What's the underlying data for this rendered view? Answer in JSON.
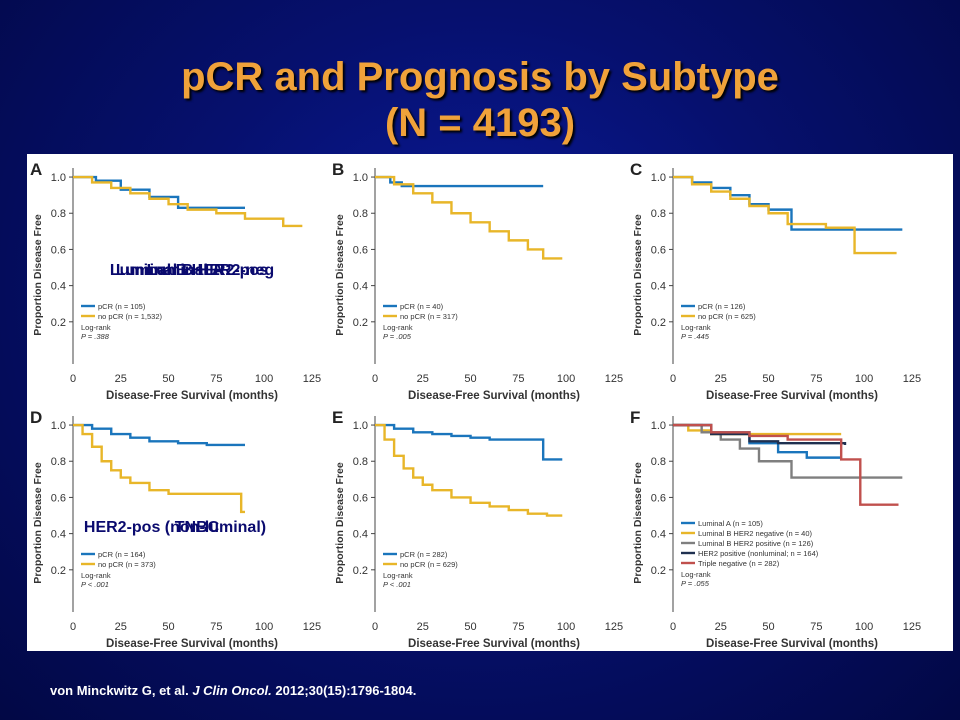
{
  "slide": {
    "title_line1": "pCR and Prognosis by Subtype",
    "title_line2": "(N = 4193)",
    "citation_authors": "von Minckwitz G, et al. ",
    "citation_journal": "J Clin Oncol.",
    "citation_details": " 2012;30(15):1796-1804."
  },
  "colors": {
    "background": "#06106e",
    "title": "#f0a23a",
    "pcr_blue": "#1a75bc",
    "nopcr_gold": "#e8b629",
    "luminal_a": "#1a75bc",
    "luminal_b_her2_neg": "#e8b629",
    "luminal_b_her2_pos": "#7f7f7f",
    "her2_nonluminal": "#1f3050",
    "triple_negative": "#c0504d"
  },
  "chart_data": [
    {
      "panel": "A",
      "type": "line",
      "step": true,
      "label": "Luminal A",
      "xlabel": "Disease-Free Survival (months)",
      "ylabel": "Proportion Disease Free",
      "xticks": [
        0,
        25,
        50,
        75,
        100,
        125
      ],
      "yticks": [
        0.2,
        0.4,
        0.6,
        0.8,
        1.0
      ],
      "xlim": [
        0,
        135
      ],
      "ylim": [
        0,
        1.05
      ],
      "series": [
        {
          "name": "pCR (n = 105)",
          "color": "#1a75bc",
          "x": [
            0,
            12,
            25,
            40,
            55,
            70,
            90
          ],
          "y": [
            1.0,
            0.98,
            0.93,
            0.89,
            0.83,
            0.83,
            0.83
          ]
        },
        {
          "name": "no pCR (n = 1,532)",
          "color": "#e8b629",
          "x": [
            0,
            10,
            20,
            30,
            40,
            50,
            60,
            75,
            90,
            110,
            120
          ],
          "y": [
            1.0,
            0.97,
            0.94,
            0.91,
            0.88,
            0.85,
            0.82,
            0.8,
            0.77,
            0.73,
            0.73
          ]
        }
      ],
      "legend": [
        "pCR (n = 105)",
        "no pCR (n = 1,532)"
      ],
      "stat": [
        "Log-rank",
        "P = .388"
      ]
    },
    {
      "panel": "B",
      "type": "line",
      "step": true,
      "label": "Luminal B HER2-neg",
      "xlabel": "Disease-Free Survival (months)",
      "ylabel": "Proportion Disease Free",
      "xticks": [
        0,
        25,
        50,
        75,
        100,
        125
      ],
      "yticks": [
        0.2,
        0.4,
        0.6,
        0.8,
        1.0
      ],
      "xlim": [
        0,
        135
      ],
      "ylim": [
        0,
        1.05
      ],
      "series": [
        {
          "name": "pCR (n = 40)",
          "color": "#1a75bc",
          "x": [
            0,
            8,
            14,
            30,
            88
          ],
          "y": [
            1.0,
            0.97,
            0.95,
            0.95,
            0.95
          ]
        },
        {
          "name": "no pCR (n = 317)",
          "color": "#e8b629",
          "x": [
            0,
            10,
            20,
            30,
            40,
            50,
            60,
            70,
            80,
            88,
            98
          ],
          "y": [
            1.0,
            0.96,
            0.91,
            0.86,
            0.8,
            0.75,
            0.7,
            0.65,
            0.6,
            0.55,
            0.55
          ]
        }
      ],
      "legend": [
        "pCR (n = 40)",
        "no pCR (n = 317)"
      ],
      "stat": [
        "Log-rank",
        "P = .005"
      ]
    },
    {
      "panel": "C",
      "type": "line",
      "step": true,
      "label": "Luminal B HER2-pos",
      "xlabel": "Disease-Free Survival (months)",
      "ylabel": "Proportion Disease Free",
      "xticks": [
        0,
        25,
        50,
        75,
        100,
        125
      ],
      "yticks": [
        0.2,
        0.4,
        0.6,
        0.8,
        1.0
      ],
      "xlim": [
        0,
        135
      ],
      "ylim": [
        0,
        1.05
      ],
      "series": [
        {
          "name": "pCR (n = 126)",
          "color": "#1a75bc",
          "x": [
            0,
            10,
            20,
            30,
            40,
            50,
            62,
            80,
            100,
            120
          ],
          "y": [
            1.0,
            0.97,
            0.94,
            0.9,
            0.85,
            0.82,
            0.71,
            0.71,
            0.71,
            0.71
          ]
        },
        {
          "name": "no pCR (n = 625)",
          "color": "#e8b629",
          "x": [
            0,
            10,
            20,
            30,
            40,
            50,
            60,
            80,
            95,
            117
          ],
          "y": [
            1.0,
            0.96,
            0.92,
            0.88,
            0.84,
            0.8,
            0.74,
            0.72,
            0.58,
            0.58
          ]
        }
      ],
      "legend": [
        "pCR (n = 126)",
        "no pCR (n = 625)"
      ],
      "stat": [
        "Log-rank",
        "P = .445"
      ]
    },
    {
      "panel": "D",
      "type": "line",
      "step": true,
      "label": "HER2-pos (non-luminal)",
      "xlabel": "Disease-Free Survival (months)",
      "ylabel": "Proportion Disease Free",
      "xticks": [
        0,
        25,
        50,
        75,
        100,
        125
      ],
      "yticks": [
        0.2,
        0.4,
        0.6,
        0.8,
        1.0
      ],
      "xlim": [
        0,
        135
      ],
      "ylim": [
        0,
        1.05
      ],
      "series": [
        {
          "name": "pCR (n = 164)",
          "color": "#1a75bc",
          "x": [
            0,
            10,
            20,
            30,
            40,
            55,
            70,
            90
          ],
          "y": [
            1.0,
            0.98,
            0.95,
            0.93,
            0.91,
            0.9,
            0.89,
            0.89
          ]
        },
        {
          "name": "no pCR (n = 373)",
          "color": "#e8b629",
          "x": [
            0,
            5,
            10,
            15,
            20,
            25,
            30,
            40,
            50,
            60,
            70,
            85,
            88,
            90
          ],
          "y": [
            1.0,
            0.95,
            0.88,
            0.8,
            0.75,
            0.71,
            0.68,
            0.64,
            0.62,
            0.62,
            0.62,
            0.62,
            0.52,
            0.52
          ]
        }
      ],
      "legend": [
        "pCR (n = 164)",
        "no pCR (n = 373)"
      ],
      "stat": [
        "Log-rank",
        "P < .001"
      ]
    },
    {
      "panel": "E",
      "type": "line",
      "step": true,
      "label": "TNBC",
      "xlabel": "Disease-Free Survival (months)",
      "ylabel": "Proportion Disease Free",
      "xticks": [
        0,
        25,
        50,
        75,
        100,
        125
      ],
      "yticks": [
        0.2,
        0.4,
        0.6,
        0.8,
        1.0
      ],
      "xlim": [
        0,
        135
      ],
      "ylim": [
        0,
        1.05
      ],
      "series": [
        {
          "name": "pCR (n = 282)",
          "color": "#1a75bc",
          "x": [
            0,
            10,
            20,
            30,
            40,
            50,
            60,
            70,
            88,
            98
          ],
          "y": [
            1.0,
            0.98,
            0.96,
            0.95,
            0.94,
            0.93,
            0.92,
            0.92,
            0.81,
            0.81
          ]
        },
        {
          "name": "no pCR (n = 629)",
          "color": "#e8b629",
          "x": [
            0,
            5,
            10,
            15,
            20,
            25,
            30,
            40,
            50,
            60,
            70,
            80,
            90,
            98
          ],
          "y": [
            1.0,
            0.92,
            0.83,
            0.76,
            0.71,
            0.67,
            0.64,
            0.6,
            0.57,
            0.55,
            0.53,
            0.51,
            0.5,
            0.5
          ]
        }
      ],
      "legend": [
        "pCR (n = 282)",
        "no pCR (n = 629)"
      ],
      "stat": [
        "Log-rank",
        "P < .001"
      ]
    },
    {
      "panel": "F",
      "type": "line",
      "step": true,
      "label": "",
      "xlabel": "Disease-Free Survival (months)",
      "ylabel": "Proportion Disease Free",
      "xticks": [
        0,
        25,
        50,
        75,
        100,
        125
      ],
      "yticks": [
        0.2,
        0.4,
        0.6,
        0.8,
        1.0
      ],
      "xlim": [
        0,
        135
      ],
      "ylim": [
        0,
        1.05
      ],
      "series": [
        {
          "name": "Luminal A (n = 105)",
          "color": "#1a75bc",
          "x": [
            0,
            20,
            40,
            55,
            70,
            88
          ],
          "y": [
            1.0,
            0.96,
            0.9,
            0.85,
            0.82,
            0.82
          ]
        },
        {
          "name": "Luminal B HER2 negative (n = 40)",
          "color": "#e8b629",
          "x": [
            0,
            8,
            20,
            88
          ],
          "y": [
            1.0,
            0.97,
            0.95,
            0.95
          ]
        },
        {
          "name": "Luminal B HER2 positive (n = 126)",
          "color": "#7f7f7f",
          "x": [
            0,
            15,
            25,
            35,
            45,
            62,
            80,
            120
          ],
          "y": [
            1.0,
            0.96,
            0.92,
            0.87,
            0.8,
            0.71,
            0.71,
            0.71
          ]
        },
        {
          "name": "HER2 positive (nonluminal; n = 164)",
          "color": "#1f3050",
          "x": [
            0,
            20,
            40,
            55,
            90
          ],
          "y": [
            1.0,
            0.95,
            0.91,
            0.9,
            0.89
          ]
        },
        {
          "name": "Triple negative (n = 282)",
          "color": "#c0504d",
          "x": [
            0,
            20,
            40,
            60,
            88,
            95,
            98,
            118
          ],
          "y": [
            1.0,
            0.96,
            0.94,
            0.92,
            0.81,
            0.81,
            0.56,
            0.56
          ]
        }
      ],
      "legend": [
        "Luminal A (n = 105)",
        "Luminal B HER2 negative (n = 40)",
        "Luminal B HER2 positive (n = 126)",
        "HER2 positive (nonluminal; n = 164)",
        "Triple negative (n = 282)"
      ],
      "stat": [
        "Log-rank",
        "P = .055"
      ]
    }
  ]
}
